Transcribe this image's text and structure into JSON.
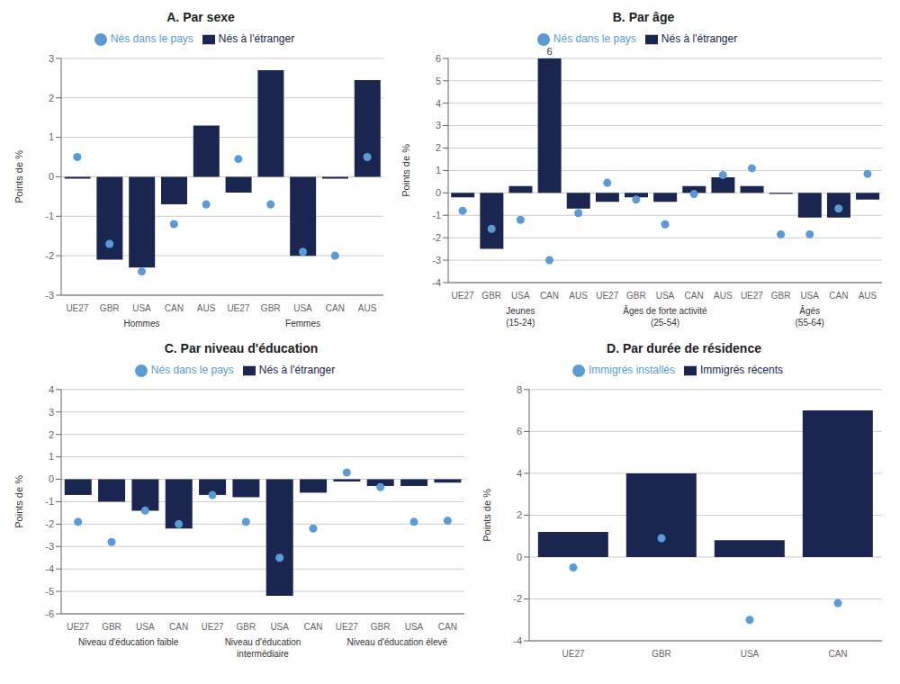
{
  "chart_data": [
    {
      "type": "bar",
      "title": "A. Par sexe",
      "y_label": "Points de %",
      "groups": [
        "Hommes",
        "Femmes"
      ],
      "categories": [
        "UE27",
        "GBR",
        "USA",
        "CAN",
        "AUS",
        "UE27",
        "GBR",
        "USA",
        "CAN",
        "AUS"
      ],
      "series": [
        {
          "name": "Nés à l'étranger",
          "type": "bar",
          "color": "#1a2550",
          "values": [
            -0.05,
            -2.1,
            -2.3,
            -0.7,
            1.3,
            -0.4,
            2.7,
            -2.0,
            -0.05,
            2.45
          ]
        },
        {
          "name": "Nés dans le pays",
          "type": "scatter",
          "marker": "circle",
          "color": "#5b9bd5",
          "values": [
            0.5,
            -1.7,
            -2.4,
            -1.2,
            -0.7,
            0.45,
            -0.7,
            -1.9,
            -2.0,
            0.5
          ]
        }
      ],
      "ylim": [
        -3,
        3
      ],
      "yticks": [
        -3,
        -2,
        -1,
        0,
        1,
        2,
        3
      ],
      "grid": true,
      "legend": "top"
    },
    {
      "type": "bar",
      "title": "B. Par âge",
      "y_label": "Points de %",
      "groups": [
        "Jeunes\n(15-24)",
        "Âges de forte activité\n(25-54)",
        "Âgés\n(55-64)"
      ],
      "categories": [
        "UE27",
        "GBR",
        "USA",
        "CAN",
        "AUS",
        "UE27",
        "GBR",
        "USA",
        "CAN",
        "AUS",
        "UE27",
        "GBR",
        "USA",
        "CAN",
        "AUS"
      ],
      "series": [
        {
          "name": "Nés à l'étranger",
          "type": "bar",
          "color": "#1a2550",
          "values": [
            -0.2,
            -2.5,
            0.3,
            6.0,
            -0.7,
            -0.4,
            -0.2,
            -0.4,
            0.3,
            0.7,
            0.3,
            -0.05,
            -1.1,
            -1.1,
            -0.3
          ]
        },
        {
          "name": "Nés dans le pays",
          "type": "scatter",
          "marker": "circle",
          "color": "#5b9bd5",
          "values": [
            -0.8,
            -1.6,
            -1.2,
            -3.0,
            -0.9,
            0.45,
            -0.3,
            -1.4,
            -0.05,
            0.8,
            1.1,
            -1.85,
            -1.85,
            -0.7,
            0.85
          ]
        }
      ],
      "annotations": [
        {
          "text": "6",
          "category_index": 3
        }
      ],
      "ylim": [
        -4,
        6
      ],
      "yticks": [
        -4,
        -3,
        -2,
        -1,
        0,
        1,
        2,
        3,
        4,
        5,
        6
      ],
      "grid": true,
      "legend": "top"
    },
    {
      "type": "bar",
      "title": "C. Par niveau d'éducation",
      "y_label": "Points de %",
      "groups": [
        "Niveau d'éducation faible",
        "Niveau d'éducation\nintermédiaire",
        "Niveau d'éducation élevé"
      ],
      "categories": [
        "UE27",
        "GBR",
        "USA",
        "CAN",
        "UE27",
        "GBR",
        "USA",
        "CAN",
        "UE27",
        "GBR",
        "USA",
        "CAN"
      ],
      "series": [
        {
          "name": "Nés à l'étranger",
          "type": "bar",
          "color": "#1a2550",
          "values": [
            -0.7,
            -1.0,
            -1.4,
            -2.2,
            -0.7,
            -0.8,
            -5.2,
            -0.6,
            -0.1,
            -0.3,
            -0.3,
            -0.15
          ]
        },
        {
          "name": "Nés dans le pays",
          "type": "scatter",
          "marker": "circle",
          "color": "#5b9bd5",
          "values": [
            -1.9,
            -2.8,
            -1.4,
            -2.0,
            -0.7,
            -1.9,
            -3.5,
            -2.2,
            0.3,
            -0.35,
            -1.9,
            -1.85
          ]
        }
      ],
      "ylim": [
        -6,
        4
      ],
      "yticks": [
        -6,
        -5,
        -4,
        -3,
        -2,
        -1,
        0,
        1,
        2,
        3,
        4
      ],
      "grid": true,
      "legend": "top"
    },
    {
      "type": "bar",
      "title": "D. Par durée de résidence",
      "y_label": "Points de %",
      "categories": [
        "UE27",
        "GBR",
        "USA",
        "CAN"
      ],
      "series": [
        {
          "name": "Immigrés récents",
          "type": "bar",
          "color": "#1a2550",
          "values": [
            1.2,
            4.0,
            0.8,
            7.0
          ]
        },
        {
          "name": "Immigrés installés",
          "type": "scatter",
          "marker": "circle",
          "color": "#5b9bd5",
          "values": [
            -0.5,
            0.9,
            -3.0,
            -2.2
          ]
        }
      ],
      "ylim": [
        -4,
        8
      ],
      "yticks": [
        -4,
        -2,
        0,
        2,
        4,
        6,
        8
      ],
      "grid": true,
      "legend": "top"
    }
  ]
}
